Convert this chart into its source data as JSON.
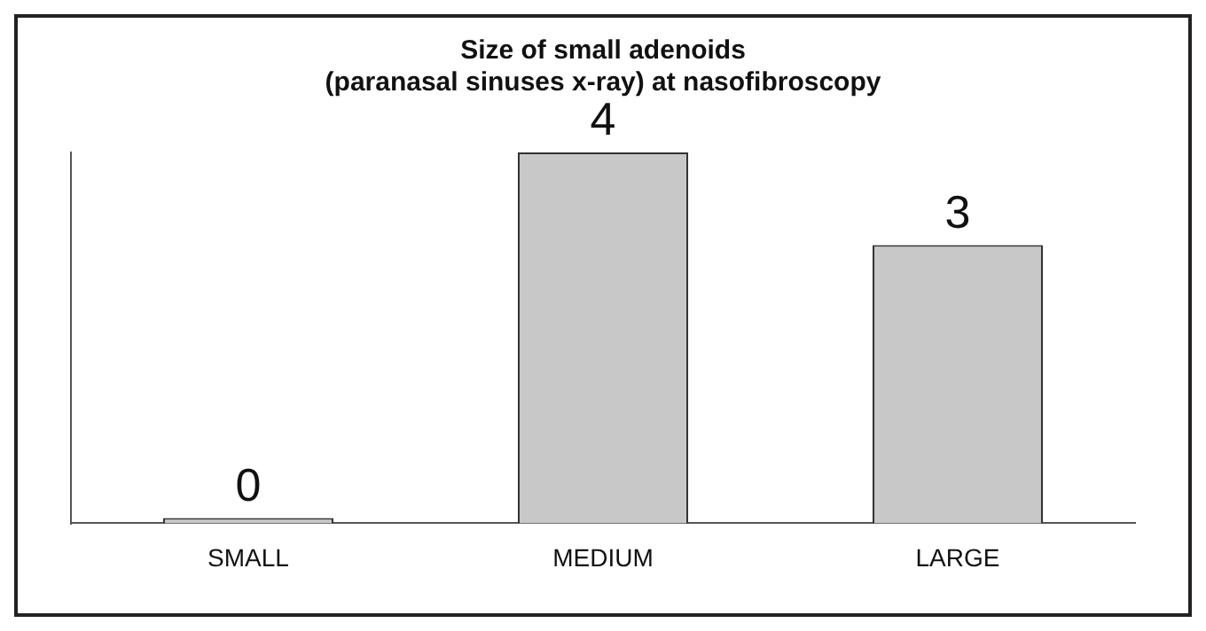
{
  "chart_data": {
    "type": "bar",
    "title": "Size of small adenoids\n(paranasal sinuses x-ray) at nasofibroscopy",
    "categories": [
      "SMALL",
      "MEDIUM",
      "LARGE"
    ],
    "values": [
      0,
      4,
      3
    ],
    "color": "#c8c8c8",
    "ylim": [
      0,
      4
    ],
    "tick_labels": "x",
    "data_labels": true
  }
}
